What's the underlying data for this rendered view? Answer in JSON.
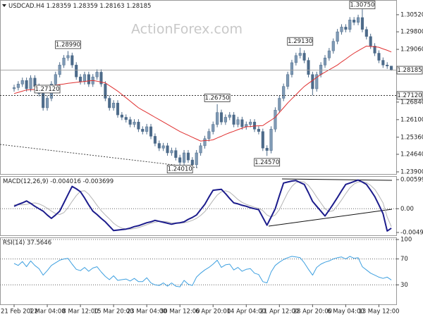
{
  "chart_data": [
    {
      "type": "candlestick",
      "symbol": "USDCAD.H4",
      "watermark": "ActionForex.com",
      "color": "#4d6b8a",
      "categories": [
        "21 Feb 2022",
        null,
        null,
        null,
        null,
        null,
        null,
        null,
        "1 Mar 04:00",
        null,
        null,
        null,
        null,
        null,
        null,
        null,
        "8 Mar 12:00",
        null,
        null,
        null,
        null,
        null,
        null,
        null,
        "15 Mar 20:00",
        null,
        null,
        null,
        null,
        null,
        null,
        null,
        "23 Mar 04:00",
        null,
        null,
        null,
        null,
        null,
        null,
        null,
        "30 Mar 12:00",
        null,
        null,
        null,
        null,
        null,
        null,
        null,
        "6 Apr 20:00",
        null,
        null,
        null,
        null,
        null,
        null,
        null,
        "14 Apr 04:00",
        null,
        null,
        null,
        null,
        null,
        null,
        null,
        "21 Apr 12:00",
        null,
        null,
        null,
        null,
        null,
        null,
        null,
        "28 Apr 20:00",
        null,
        null,
        null,
        null,
        null,
        null,
        null,
        "6 May 04:00",
        null,
        null,
        null,
        null,
        null,
        null,
        null,
        "13 May 12:00",
        null,
        null,
        null
      ],
      "open": [
        1.274,
        1.2745,
        1.276,
        1.2775,
        1.274,
        1.2785,
        1.275,
        1.272,
        1.266,
        1.27,
        1.276,
        1.28,
        1.284,
        1.287,
        1.288,
        1.284,
        1.279,
        1.277,
        1.28,
        1.276,
        1.279,
        1.281,
        1.276,
        1.27,
        1.266,
        1.268,
        1.263,
        1.262,
        1.261,
        1.259,
        1.26,
        1.257,
        1.256,
        1.258,
        1.254,
        1.251,
        1.249,
        1.25,
        1.247,
        1.248,
        1.245,
        1.243,
        1.247,
        1.244,
        1.242,
        1.247,
        1.25,
        1.253,
        1.256,
        1.259,
        1.264,
        1.26,
        1.262,
        1.263,
        1.259,
        1.261,
        1.258,
        1.259,
        1.26,
        1.257,
        1.256,
        1.249,
        1.248,
        1.257,
        1.265,
        1.27,
        1.275,
        1.28,
        1.285,
        1.288,
        1.289,
        1.286,
        1.28,
        1.274,
        1.28,
        1.284,
        1.287,
        1.29,
        1.294,
        1.298,
        1.3,
        1.299,
        1.303,
        1.302,
        1.304,
        1.299,
        1.296,
        1.292,
        1.289,
        1.286,
        1.284,
        1.28359
      ],
      "high": [
        1.2757,
        1.2772,
        1.2787,
        1.2787,
        1.2797,
        1.2797,
        1.2762,
        1.2732,
        1.2712,
        1.2772,
        1.2812,
        1.2852,
        1.2882,
        1.2899,
        1.2892,
        1.2852,
        1.2802,
        1.2812,
        1.2812,
        1.2802,
        1.2822,
        1.2822,
        1.2772,
        1.2712,
        1.2692,
        1.2692,
        1.2642,
        1.2632,
        1.2622,
        1.2612,
        1.2612,
        1.2582,
        1.2592,
        1.2592,
        1.2552,
        1.2522,
        1.2512,
        1.2512,
        1.2492,
        1.2492,
        1.2462,
        1.2482,
        1.2482,
        1.2452,
        1.2482,
        1.2512,
        1.2542,
        1.2572,
        1.2602,
        1.2675,
        1.2652,
        1.2632,
        1.2642,
        1.2642,
        1.2622,
        1.2622,
        1.2602,
        1.2612,
        1.2612,
        1.2582,
        1.2572,
        1.2502,
        1.2582,
        1.2662,
        1.2712,
        1.2762,
        1.2812,
        1.2862,
        1.2892,
        1.2913,
        1.2902,
        1.2872,
        1.2812,
        1.2812,
        1.2852,
        1.2882,
        1.2912,
        1.2952,
        1.2992,
        1.3012,
        1.3012,
        1.3042,
        1.3042,
        1.3052,
        1.3075,
        1.3002,
        1.2972,
        1.2932,
        1.2902,
        1.2872,
        1.2852,
        1.28359
      ],
      "low": [
        1.2728,
        1.2733,
        1.2748,
        1.2728,
        1.2728,
        1.2738,
        1.2708,
        1.2648,
        1.2648,
        1.2688,
        1.2748,
        1.2788,
        1.2828,
        1.2858,
        1.2828,
        1.2778,
        1.2758,
        1.2758,
        1.2748,
        1.2748,
        1.2778,
        1.2748,
        1.2688,
        1.2648,
        1.2648,
        1.2618,
        1.2608,
        1.2598,
        1.2578,
        1.2578,
        1.2558,
        1.2548,
        1.2548,
        1.2528,
        1.2498,
        1.2478,
        1.2478,
        1.2458,
        1.2458,
        1.2438,
        1.2401,
        1.2418,
        1.2428,
        1.2408,
        1.2408,
        1.2458,
        1.2488,
        1.2518,
        1.2548,
        1.2578,
        1.2588,
        1.2588,
        1.2608,
        1.2578,
        1.2578,
        1.2568,
        1.2568,
        1.2578,
        1.2558,
        1.2548,
        1.2478,
        1.2457,
        1.2468,
        1.2558,
        1.2638,
        1.2688,
        1.2738,
        1.2788,
        1.2838,
        1.2868,
        1.2848,
        1.2788,
        1.2712,
        1.2728,
        1.2788,
        1.2828,
        1.2858,
        1.2888,
        1.2928,
        1.2968,
        1.2978,
        1.2978,
        1.3008,
        1.3008,
        1.2978,
        1.2948,
        1.2908,
        1.2878,
        1.2848,
        1.2828,
        1.2824,
        1.28163
      ],
      "close": [
        1.2745,
        1.276,
        1.2775,
        1.274,
        1.2785,
        1.275,
        1.272,
        1.266,
        1.27,
        1.276,
        1.28,
        1.284,
        1.287,
        1.288,
        1.284,
        1.279,
        1.277,
        1.28,
        1.276,
        1.279,
        1.281,
        1.276,
        1.27,
        1.266,
        1.268,
        1.263,
        1.262,
        1.261,
        1.259,
        1.26,
        1.257,
        1.256,
        1.258,
        1.254,
        1.251,
        1.249,
        1.25,
        1.247,
        1.248,
        1.245,
        1.243,
        1.247,
        1.244,
        1.242,
        1.247,
        1.25,
        1.253,
        1.256,
        1.259,
        1.264,
        1.26,
        1.262,
        1.263,
        1.259,
        1.261,
        1.258,
        1.259,
        1.26,
        1.257,
        1.256,
        1.249,
        1.248,
        1.257,
        1.265,
        1.27,
        1.275,
        1.28,
        1.285,
        1.288,
        1.289,
        1.286,
        1.28,
        1.274,
        1.28,
        1.284,
        1.287,
        1.29,
        1.294,
        1.298,
        1.3,
        1.299,
        1.303,
        1.302,
        1.304,
        1.299,
        1.296,
        1.292,
        1.289,
        1.286,
        1.284,
        1.28359,
        1.28185
      ],
      "ma": {
        "color": "#e03030",
        "values": [
          1.272,
          1.2725,
          1.273,
          1.2735,
          1.2736,
          1.2737,
          1.2737,
          1.2738,
          1.2744,
          1.2749,
          1.2755,
          1.2758,
          1.276,
          1.2763,
          1.2765,
          1.2767,
          1.2769,
          1.2771,
          1.2773,
          1.2775,
          1.2772,
          1.2768,
          1.2765,
          1.2753,
          1.2742,
          1.273,
          1.2716,
          1.2702,
          1.2688,
          1.2674,
          1.266,
          1.265,
          1.264,
          1.263,
          1.262,
          1.261,
          1.26,
          1.259,
          1.258,
          1.257,
          1.256,
          1.2552,
          1.2544,
          1.2536,
          1.2528,
          1.252,
          1.2522,
          1.2523,
          1.2525,
          1.2533,
          1.254,
          1.2548,
          1.2555,
          1.2561,
          1.2568,
          1.2574,
          1.258,
          1.2581,
          1.2583,
          1.2584,
          1.2585,
          1.2597,
          1.2608,
          1.262,
          1.264,
          1.266,
          1.268,
          1.2698,
          1.2715,
          1.2733,
          1.275,
          1.2763,
          1.2775,
          1.2788,
          1.28,
          1.281,
          1.282,
          1.283,
          1.284,
          1.2853,
          1.2865,
          1.2878,
          1.289,
          1.29,
          1.291,
          1.292,
          1.2918,
          1.2917,
          1.2915,
          1.2908,
          1.2902,
          1.2895
        ]
      },
      "ylim": [
        1.2381,
        1.3114
      ],
      "yticks": [
        {
          "value": 1.3052,
          "label": "1.30520"
        },
        {
          "value": 1.298,
          "label": "1.29800"
        },
        {
          "value": 1.2906,
          "label": "1.29060"
        },
        {
          "value": 1.2684,
          "label": "1.26840"
        },
        {
          "value": 1.261,
          "label": "1.26100"
        },
        {
          "value": 1.2536,
          "label": "1.25360"
        },
        {
          "value": 1.2464,
          "label": "1.24640"
        },
        {
          "value": 1.239,
          "label": "1.23900"
        }
      ],
      "levels": [
        {
          "value": 1.2712,
          "label": "1.27120"
        }
      ],
      "annotations": [
        {
          "value": 1.2899,
          "label": "1.28990"
        },
        {
          "value": 1.2401,
          "label": "1.24010"
        },
        {
          "value": 1.2675,
          "label": "1.26750"
        },
        {
          "value": 1.2457,
          "label": "1.24570"
        },
        {
          "value": 1.2913,
          "label": "1.29130"
        },
        {
          "value": 1.2712,
          "label": "1.27120"
        },
        {
          "value": 1.3075,
          "label": "1.30750"
        }
      ]
    },
    {
      "type": "line",
      "title": "MACD(12,26,9)",
      "zero_line": true,
      "series": [
        {
          "color": "#1c1c8c",
          "values": [
            0.0005,
            0.0009,
            0.0012,
            0.0016,
            0.0011,
            0.0005,
            0.0,
            -0.0005,
            -0.0013,
            -0.002,
            -0.0013,
            -0.0005,
            0.0012,
            0.0029,
            0.0046,
            0.0041,
            0.0035,
            0.0022,
            0.0008,
            -0.0005,
            -0.0012,
            -0.002,
            -0.0027,
            -0.0036,
            -0.0045,
            -0.0044,
            -0.0043,
            -0.0042,
            -0.004,
            -0.0037,
            -0.0035,
            -0.0032,
            -0.0029,
            -0.0027,
            -0.0024,
            -0.0026,
            -0.0028,
            -0.003,
            -0.0032,
            -0.003,
            -0.0029,
            -0.0027,
            -0.0022,
            -0.0018,
            -0.0013,
            -0.0002,
            0.0009,
            0.0024,
            0.0038,
            0.0039,
            0.004,
            0.0031,
            0.0021,
            0.0012,
            0.001,
            0.0007,
            0.0005,
            0.0002,
            0.0,
            -0.0002,
            -0.0018,
            -0.0034,
            -0.0017,
            0.0,
            0.0027,
            0.0053,
            0.0055,
            0.0057,
            0.0058,
            0.0054,
            0.005,
            0.0033,
            0.0015,
            0.0005,
            -0.0005,
            -0.0015,
            -0.0003,
            0.001,
            0.0023,
            0.0037,
            0.005,
            0.0053,
            0.0056,
            0.0059,
            0.0055,
            0.005,
            0.0038,
            0.0025,
            0.0008,
            -0.001,
            -0.0046,
            -0.004016
          ]
        },
        {
          "color": "#b4b4b4",
          "values": [
            0.0008,
            0.0008,
            0.0008,
            0.0009,
            0.0011,
            0.0012,
            0.001,
            0.0006,
            0.0001,
            -0.0005,
            -0.001,
            -0.0012,
            -0.0008,
            0.0002,
            0.0015,
            0.0027,
            0.0036,
            0.0037,
            0.003,
            0.0019,
            0.0007,
            -0.0004,
            -0.0013,
            -0.0021,
            -0.003,
            -0.0036,
            -0.004,
            -0.0042,
            -0.0042,
            -0.0041,
            -0.0039,
            -0.0036,
            -0.0033,
            -0.003,
            -0.0028,
            -0.0026,
            -0.0026,
            -0.0027,
            -0.0029,
            -0.003,
            -0.003,
            -0.0029,
            -0.0027,
            -0.0024,
            -0.002,
            -0.0014,
            -0.0006,
            0.0005,
            0.0017,
            0.0028,
            0.0035,
            0.0037,
            0.0034,
            0.0027,
            0.0019,
            0.0013,
            0.0009,
            0.0006,
            0.0003,
            0.0001,
            -0.0004,
            -0.0013,
            -0.0017,
            -0.0013,
            -0.0002,
            0.0016,
            0.0033,
            0.0046,
            0.0054,
            0.0056,
            0.0055,
            0.0048,
            0.0037,
            0.0024,
            0.0012,
            0.0,
            -0.0006,
            -0.0004,
            0.0006,
            0.0018,
            0.0031,
            0.0043,
            0.0051,
            0.0055,
            0.0056,
            0.0054,
            0.0048,
            0.004,
            0.0027,
            0.0012,
            -0.0017,
            -0.003699
          ]
        }
      ],
      "ylim": [
        -0.00548,
        0.00672
      ],
      "yticks": [
        0.005996,
        {
          "value": 0,
          "label": "0.00"
        },
        -0.004901
      ]
    },
    {
      "type": "line",
      "title": "RSI(14)",
      "grid": "dotted",
      "series": [
        {
          "color": "#3ea0e0",
          "values": [
            63,
            60,
            66,
            58,
            67,
            60,
            55,
            45,
            52,
            60,
            64,
            68,
            70,
            71,
            62,
            54,
            52,
            57,
            51,
            56,
            58,
            50,
            43,
            38,
            44,
            37,
            38,
            39,
            36,
            40,
            35,
            35,
            41,
            33,
            30,
            29,
            33,
            28,
            33,
            28,
            27,
            37,
            31,
            29,
            42,
            48,
            53,
            57,
            62,
            68,
            57,
            61,
            62,
            53,
            57,
            51,
            54,
            55,
            48,
            46,
            35,
            33,
            50,
            60,
            65,
            69,
            72,
            74,
            73,
            72,
            64,
            54,
            45,
            57,
            62,
            65,
            67,
            70,
            72,
            73,
            70,
            74,
            71,
            72,
            58,
            53,
            48,
            45,
            42,
            40,
            42,
            37.5646
          ]
        }
      ],
      "ylim": [
        0,
        100
      ],
      "yticks": [
        100,
        70,
        30
      ]
    }
  ]
}
